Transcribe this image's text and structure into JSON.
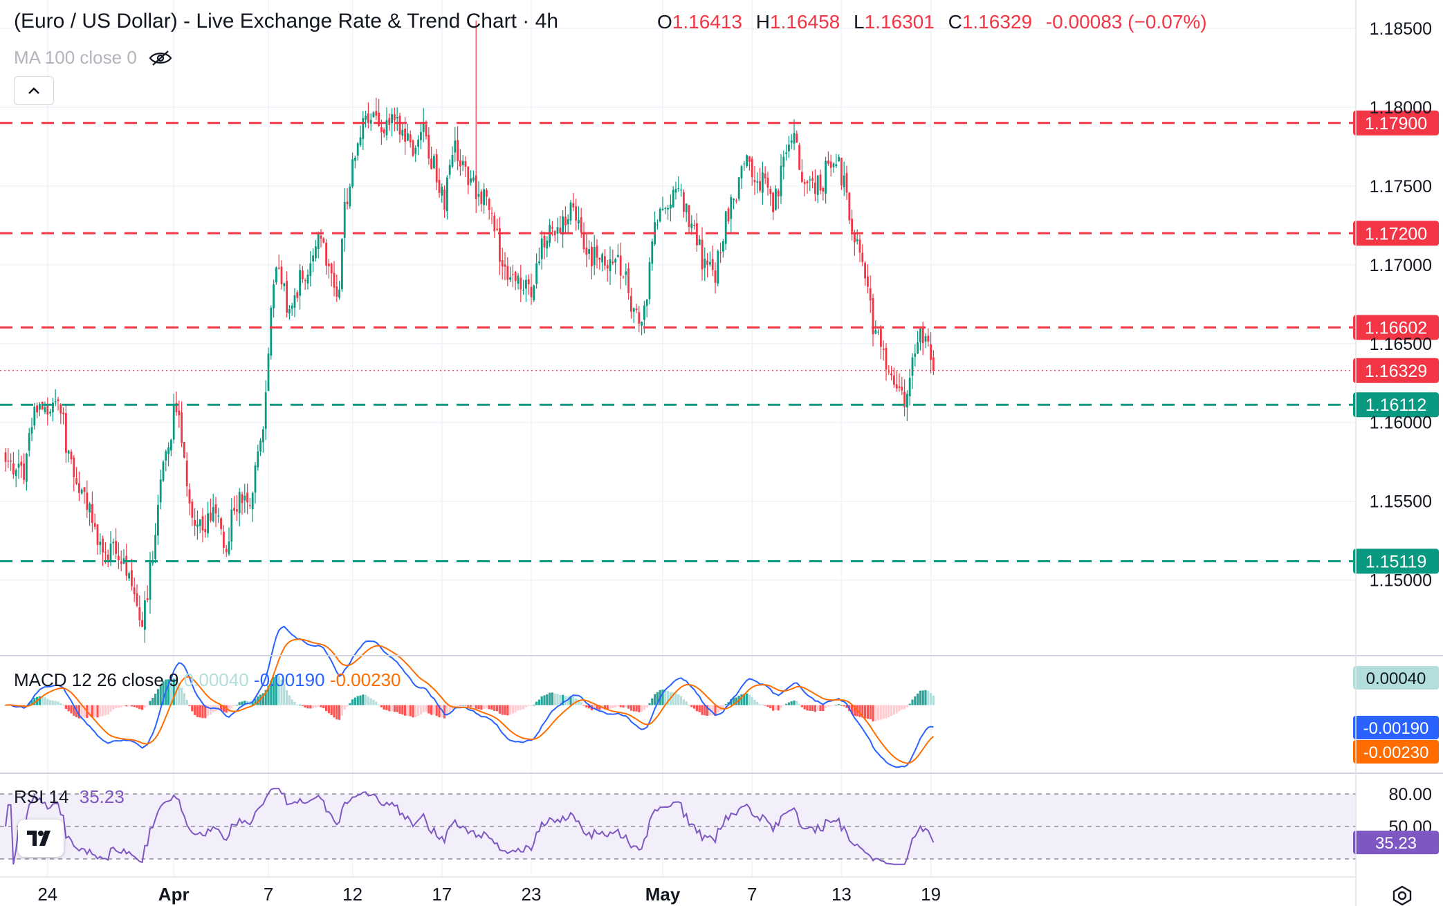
{
  "header": {
    "title": "(Euro / US Dollar) - Live Exchange Rate & Trend Chart · 4h",
    "ohlc": [
      {
        "key": "O",
        "value": "1.16413"
      },
      {
        "key": "H",
        "value": "1.16458"
      },
      {
        "key": "L",
        "value": "1.16301"
      },
      {
        "key": "C",
        "value": "1.16329"
      }
    ],
    "change": "-0.00083 (−0.07%)",
    "ma_label": "MA 100 close 0"
  },
  "indicators": {
    "macd": {
      "name": "MACD",
      "params": "12 26 close 9",
      "hist": "0.00040",
      "macd": "-0.00190",
      "signal": "-0.00230"
    },
    "rsi": {
      "name": "RSI",
      "params": "14",
      "value": "35.23"
    }
  },
  "colors": {
    "up": "#089981",
    "down": "#f23645",
    "resistance": "#f23645",
    "support": "#089981",
    "macd_line": "#2962ff",
    "signal_line": "#ff6d00",
    "rsi_line": "#7e57c2",
    "rsi_band": "#f3effa"
  },
  "chart_data": {
    "type": "candlestick",
    "title": "(Euro / US Dollar) - Live Exchange Rate & Trend Chart · 4h",
    "timeframe": "4h",
    "y_axis": {
      "ticks": [
        "1.18500",
        "1.18000",
        "1.17500",
        "1.17000",
        "1.16500",
        "1.16000",
        "1.15500",
        "1.15000"
      ],
      "range": [
        1.1452,
        1.1868
      ]
    },
    "x_axis": {
      "ticks": [
        {
          "label": "24",
          "bar": 16
        },
        {
          "label": "Apr",
          "bar": 64
        },
        {
          "label": "7",
          "bar": 100
        },
        {
          "label": "12",
          "bar": 132
        },
        {
          "label": "17",
          "bar": 166
        },
        {
          "label": "23",
          "bar": 200
        },
        {
          "label": "May",
          "bar": 250
        },
        {
          "label": "7",
          "bar": 284
        },
        {
          "label": "13",
          "bar": 318
        },
        {
          "label": "19",
          "bar": 352
        }
      ],
      "bar_count": 354
    },
    "horizontal_levels": [
      {
        "value": "1.17900",
        "type": "resistance"
      },
      {
        "value": "1.17200",
        "type": "resistance"
      },
      {
        "value": "1.16602",
        "type": "resistance"
      },
      {
        "value": "1.16329",
        "type": "last-price"
      },
      {
        "value": "1.16112",
        "type": "support"
      },
      {
        "value": "1.15119",
        "type": "support"
      }
    ],
    "last_price": 1.16329,
    "last_ohlc": {
      "open": 1.16413,
      "high": 1.16458,
      "low": 1.16301,
      "close": 1.16329
    },
    "path_anchors": [
      [
        0,
        1.1575
      ],
      [
        8,
        1.157
      ],
      [
        12,
        1.1615
      ],
      [
        16,
        1.1605
      ],
      [
        22,
        1.161
      ],
      [
        26,
        1.157
      ],
      [
        32,
        1.1555
      ],
      [
        38,
        1.152
      ],
      [
        44,
        1.152
      ],
      [
        50,
        1.1505
      ],
      [
        54,
        1.1467
      ],
      [
        58,
        1.1505
      ],
      [
        62,
        1.156
      ],
      [
        66,
        1.159
      ],
      [
        68,
        1.1615
      ],
      [
        70,
        1.16
      ],
      [
        74,
        1.1545
      ],
      [
        78,
        1.1535
      ],
      [
        84,
        1.154
      ],
      [
        88,
        1.152
      ],
      [
        92,
        1.155
      ],
      [
        98,
        1.1545
      ],
      [
        100,
        1.157
      ],
      [
        104,
        1.161
      ],
      [
        106,
        1.166
      ],
      [
        108,
        1.169
      ],
      [
        110,
        1.17
      ],
      [
        114,
        1.1665
      ],
      [
        118,
        1.169
      ],
      [
        122,
        1.1695
      ],
      [
        126,
        1.172
      ],
      [
        128,
        1.171
      ],
      [
        132,
        1.168
      ],
      [
        134,
        1.169
      ],
      [
        136,
        1.174
      ],
      [
        140,
        1.1765
      ],
      [
        144,
        1.179
      ],
      [
        148,
        1.179
      ],
      [
        152,
        1.1785
      ],
      [
        156,
        1.1795
      ],
      [
        158,
        1.178
      ],
      [
        164,
        1.1775
      ],
      [
        168,
        1.1785
      ],
      [
        172,
        1.176
      ],
      [
        176,
        1.174
      ],
      [
        180,
        1.178
      ],
      [
        184,
        1.176
      ],
      [
        188,
        1.175
      ],
      [
        192,
        1.174
      ],
      [
        196,
        1.172
      ],
      [
        200,
        1.17
      ],
      [
        206,
        1.169
      ],
      [
        210,
        1.168
      ],
      [
        216,
        1.1715
      ],
      [
        222,
        1.1725
      ],
      [
        228,
        1.1735
      ],
      [
        232,
        1.171
      ],
      [
        236,
        1.1705
      ],
      [
        240,
        1.17
      ],
      [
        244,
        1.171
      ],
      [
        248,
        1.1695
      ],
      [
        252,
        1.1665
      ],
      [
        256,
        1.1665
      ],
      [
        260,
        1.1725
      ],
      [
        264,
        1.173
      ],
      [
        268,
        1.1745
      ],
      [
        272,
        1.174
      ],
      [
        276,
        1.172
      ],
      [
        280,
        1.17
      ],
      [
        284,
        1.169
      ],
      [
        288,
        1.1725
      ],
      [
        292,
        1.174
      ],
      [
        296,
        1.177
      ],
      [
        300,
        1.1755
      ],
      [
        304,
        1.175
      ],
      [
        308,
        1.1735
      ],
      [
        312,
        1.177
      ],
      [
        316,
        1.178
      ],
      [
        320,
        1.1755
      ],
      [
        324,
        1.1745
      ],
      [
        328,
        1.1755
      ],
      [
        332,
        1.177
      ],
      [
        336,
        1.1755
      ],
      [
        340,
        1.172
      ],
      [
        344,
        1.17
      ],
      [
        348,
        1.166
      ],
      [
        352,
        1.164
      ],
      [
        356,
        1.162
      ],
      [
        360,
        1.1612
      ],
      [
        364,
        1.1645
      ],
      [
        368,
        1.1655
      ],
      [
        372,
        1.1636
      ]
    ],
    "macd_range": [
      -0.0034,
      0.0024
    ],
    "rsi_levels": [
      "80.00",
      "50.00"
    ]
  }
}
